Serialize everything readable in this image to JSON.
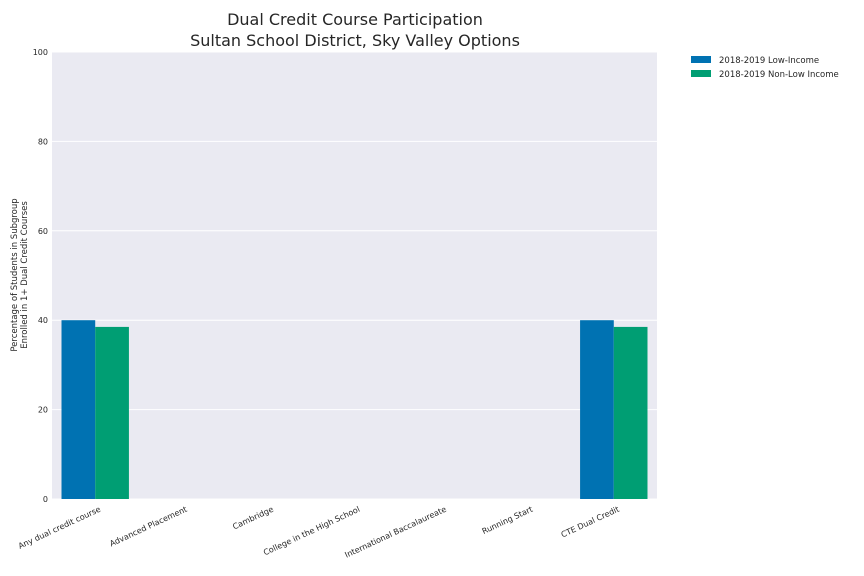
{
  "chart_data": {
    "type": "bar",
    "title": "Dual Credit Course Participation",
    "subtitle": "Sultan School District, Sky Valley Options",
    "xlabel": "",
    "ylabel_line1": "Percentage of Students in Subgroup",
    "ylabel_line2": "Enrolled in 1+ Dual Credit Courses",
    "ylim": [
      0,
      100
    ],
    "yticks": [
      "0",
      "20",
      "40",
      "60",
      "80",
      "100"
    ],
    "grid": true,
    "legend_position": "outside-top-right",
    "categories": [
      "Any dual credit course",
      "Advanced Placement",
      "Cambridge",
      "College in the High School",
      "International Baccalaureate",
      "Running Start",
      "CTE Dual Credit"
    ],
    "series": [
      {
        "name": "2018-2019 Low-Income",
        "color": "#0072b2",
        "values": [
          40,
          0,
          0,
          0,
          0,
          0,
          40
        ]
      },
      {
        "name": "2018-2019 Non-Low Income",
        "color": "#009e73",
        "values": [
          38.5,
          0,
          0,
          0,
          0,
          0,
          38.5
        ]
      }
    ],
    "plot_background": "#eaeaf2",
    "grid_color": "#ffffff"
  }
}
